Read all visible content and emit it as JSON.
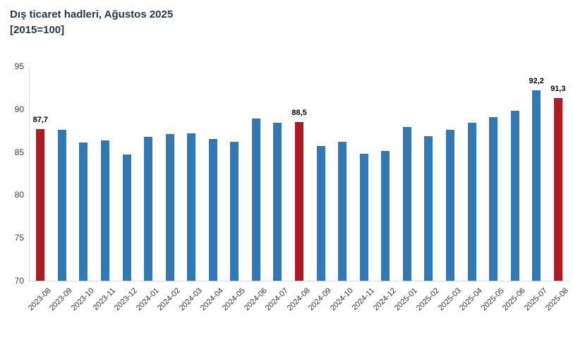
{
  "header": {
    "title": "Dış ticaret hadleri, Ağustos 2025",
    "subtitle": "[2015=100]"
  },
  "colors": {
    "bar_blue": "#3279b4",
    "bar_red": "#b01b23",
    "title_text": "#22384e",
    "axis_line": "#d9d9d9",
    "tick_text": "#404040"
  },
  "chart_data": {
    "type": "bar",
    "title": "Dış ticaret hadleri, Ağustos 2025 [2015=100]",
    "xlabel": "",
    "ylabel": "",
    "ylim": [
      70,
      95
    ],
    "yticks": [
      70,
      75,
      80,
      85,
      90,
      95
    ],
    "grid": false,
    "legend": false,
    "categories": [
      "2023-08",
      "2023-09",
      "2023-10",
      "2023-11",
      "2023-12",
      "2024-01",
      "2024-02",
      "2024-03",
      "2024-04",
      "2024-05",
      "2024-06",
      "2024-07",
      "2024-08",
      "2024-09",
      "2024-10",
      "2024-11",
      "2024-12",
      "2025-01",
      "2025-02",
      "2025-03",
      "2025-04",
      "2025-05",
      "2025-06",
      "2025-07",
      "2025-08"
    ],
    "values": [
      87.7,
      87.6,
      86.1,
      86.4,
      84.7,
      86.8,
      87.1,
      87.2,
      86.5,
      86.2,
      88.9,
      88.4,
      88.5,
      85.7,
      86.2,
      84.8,
      85.1,
      87.9,
      86.9,
      87.6,
      88.4,
      89.1,
      89.8,
      92.2,
      91.3
    ],
    "highlight_indices": [
      0,
      12,
      24
    ],
    "point_labels": [
      {
        "index": 0,
        "text": "87,7"
      },
      {
        "index": 12,
        "text": "88,5"
      },
      {
        "index": 23,
        "text": "92,2"
      },
      {
        "index": 24,
        "text": "91,3"
      }
    ]
  }
}
